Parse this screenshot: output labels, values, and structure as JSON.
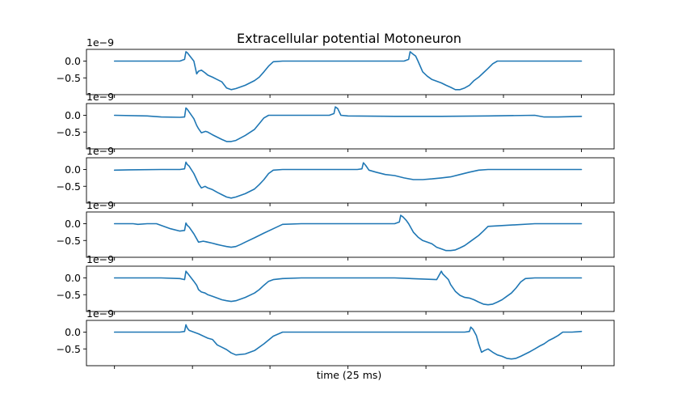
{
  "chart_data": {
    "type": "line",
    "title": "Extracellular potential Motoneuron",
    "xlabel": "time (25 ms)",
    "ylabel": "",
    "offset_text": "1e−9",
    "line_color": "#1f77b4",
    "ylim": [
      -1.0,
      0.35
    ],
    "yticks": [
      {
        "value": 0.0,
        "label": "0.0"
      },
      {
        "value": -0.5,
        "label": "−0.5"
      }
    ],
    "xlim": [
      -6,
      107
    ],
    "xticks": [
      0,
      16.7,
      33.3,
      50,
      66.7,
      83.3,
      100
    ],
    "grid": false,
    "subplots": [
      {
        "x": [
          0,
          14,
          15,
          15.3,
          15.6,
          16,
          17,
          17.6,
          18,
          18.6,
          19.4,
          20,
          21,
          22,
          23,
          24,
          25,
          26,
          28,
          30,
          31,
          32,
          33,
          34,
          36,
          40,
          45,
          50,
          55,
          58,
          60,
          62,
          63,
          63.3,
          63.8,
          64.5,
          65,
          66,
          67,
          68,
          69,
          70,
          71,
          72,
          73,
          74,
          75,
          76,
          77,
          78,
          79,
          80,
          81,
          82,
          90,
          100
        ],
        "y": [
          0,
          0,
          0.05,
          0.28,
          0.25,
          0.18,
          0,
          -0.38,
          -0.3,
          -0.27,
          -0.35,
          -0.42,
          -0.48,
          -0.55,
          -0.62,
          -0.8,
          -0.85,
          -0.82,
          -0.72,
          -0.58,
          -0.48,
          -0.32,
          -0.15,
          -0.02,
          0,
          0,
          0,
          0,
          0,
          0,
          0,
          0,
          0.05,
          0.28,
          0.22,
          0.15,
          0,
          -0.32,
          -0.45,
          -0.55,
          -0.6,
          -0.65,
          -0.72,
          -0.78,
          -0.85,
          -0.85,
          -0.8,
          -0.72,
          -0.58,
          -0.48,
          -0.35,
          -0.22,
          -0.08,
          0,
          0,
          0
        ]
      },
      {
        "x": [
          0,
          7,
          10,
          14,
          15,
          15.3,
          15.6,
          16,
          17,
          17.6,
          18,
          18.6,
          19.5,
          20,
          21,
          22,
          23,
          24,
          25,
          26,
          28,
          30,
          31,
          32,
          33,
          36,
          44,
          46,
          47,
          47.3,
          47.8,
          48.5,
          50,
          60,
          70,
          80,
          90,
          92,
          95,
          100
        ],
        "y": [
          0,
          -0.02,
          -0.05,
          -0.06,
          -0.05,
          0.22,
          0.18,
          0.1,
          -0.1,
          -0.3,
          -0.4,
          -0.52,
          -0.48,
          -0.5,
          -0.58,
          -0.65,
          -0.72,
          -0.78,
          -0.78,
          -0.75,
          -0.6,
          -0.42,
          -0.25,
          -0.08,
          0,
          0,
          0,
          0,
          0.05,
          0.25,
          0.2,
          0,
          -0.02,
          -0.03,
          -0.03,
          -0.02,
          0,
          -0.05,
          -0.05,
          -0.03
        ]
      },
      {
        "x": [
          0,
          3,
          10,
          14,
          15,
          15.3,
          15.6,
          16,
          17,
          17.6,
          18,
          18.6,
          19.4,
          20,
          21,
          22,
          23,
          24,
          25,
          26,
          28,
          30,
          31,
          32,
          33,
          34,
          36,
          44,
          52,
          53,
          53.3,
          53.8,
          54.5,
          56,
          58,
          60,
          62,
          64,
          66,
          68,
          70,
          72,
          74,
          76,
          78,
          80,
          82,
          90,
          100
        ],
        "y": [
          -0.02,
          -0.01,
          0,
          0,
          0.02,
          0.22,
          0.15,
          0.1,
          -0.12,
          -0.3,
          -0.42,
          -0.55,
          -0.5,
          -0.55,
          -0.6,
          -0.68,
          -0.75,
          -0.82,
          -0.85,
          -0.82,
          -0.72,
          -0.58,
          -0.45,
          -0.3,
          -0.12,
          -0.02,
          0,
          0,
          0,
          0.02,
          0.2,
          0.12,
          -0.02,
          -0.08,
          -0.15,
          -0.18,
          -0.25,
          -0.3,
          -0.3,
          -0.28,
          -0.25,
          -0.22,
          -0.15,
          -0.08,
          -0.02,
          0,
          0,
          0,
          0
        ]
      },
      {
        "x": [
          0,
          4,
          5,
          7,
          9,
          10,
          12,
          14,
          15,
          15.3,
          15.6,
          16,
          17,
          17.6,
          18,
          19,
          20,
          21,
          22,
          23,
          24,
          25,
          26,
          27,
          28,
          30,
          32,
          34,
          36,
          40,
          50,
          60,
          61,
          61.3,
          61.8,
          62.5,
          63,
          64,
          65,
          66,
          67,
          68,
          69,
          70,
          71,
          72,
          73,
          74,
          75,
          76,
          77,
          78,
          79,
          80,
          90,
          100
        ],
        "y": [
          0,
          0,
          -0.02,
          0,
          0,
          -0.05,
          -0.15,
          -0.22,
          -0.2,
          0.02,
          -0.05,
          -0.1,
          -0.3,
          -0.45,
          -0.55,
          -0.52,
          -0.55,
          -0.58,
          -0.62,
          -0.65,
          -0.68,
          -0.7,
          -0.68,
          -0.62,
          -0.55,
          -0.42,
          -0.28,
          -0.15,
          -0.02,
          0,
          0,
          0,
          0.05,
          0.25,
          0.2,
          0.1,
          0,
          -0.25,
          -0.4,
          -0.5,
          -0.55,
          -0.6,
          -0.7,
          -0.75,
          -0.8,
          -0.8,
          -0.78,
          -0.72,
          -0.65,
          -0.55,
          -0.45,
          -0.35,
          -0.22,
          -0.08,
          0,
          0
        ]
      },
      {
        "x": [
          0,
          10,
          14,
          15,
          15.3,
          15.6,
          16,
          17,
          17.6,
          18,
          18.6,
          19.4,
          20,
          21,
          22,
          23,
          24,
          25,
          26,
          28,
          30,
          31,
          32,
          33,
          34,
          36,
          40,
          50,
          60,
          69,
          70,
          70.3,
          70.8,
          71.5,
          72,
          73,
          74,
          75,
          76,
          77,
          78,
          79,
          80,
          81,
          82,
          83,
          84,
          85,
          86,
          87,
          88,
          90,
          100
        ],
        "y": [
          0,
          0,
          -0.02,
          -0.05,
          0.2,
          0.15,
          0.08,
          -0.1,
          -0.22,
          -0.35,
          -0.42,
          -0.45,
          -0.5,
          -0.55,
          -0.6,
          -0.65,
          -0.68,
          -0.7,
          -0.68,
          -0.58,
          -0.45,
          -0.35,
          -0.22,
          -0.1,
          -0.05,
          -0.02,
          0,
          0,
          0,
          -0.05,
          0.2,
          0.12,
          0.05,
          -0.05,
          -0.2,
          -0.4,
          -0.52,
          -0.58,
          -0.6,
          -0.65,
          -0.72,
          -0.78,
          -0.8,
          -0.78,
          -0.72,
          -0.65,
          -0.55,
          -0.45,
          -0.3,
          -0.12,
          -0.02,
          0,
          0
        ]
      },
      {
        "x": [
          0,
          10,
          14,
          15,
          15.3,
          15.6,
          16,
          18,
          20,
          21,
          22,
          23,
          24,
          25,
          26,
          28,
          30,
          32,
          34,
          36,
          40,
          50,
          60,
          75,
          76,
          76.3,
          76.8,
          77.5,
          78,
          78.6,
          79.2,
          80,
          81,
          82,
          83,
          84,
          85,
          86,
          87,
          88,
          89,
          90,
          91,
          92,
          93,
          94,
          95,
          96,
          97,
          98,
          100
        ],
        "y": [
          0,
          0,
          0,
          0.02,
          0.22,
          0.12,
          0.05,
          -0.05,
          -0.18,
          -0.22,
          -0.38,
          -0.45,
          -0.52,
          -0.62,
          -0.68,
          -0.65,
          -0.55,
          -0.35,
          -0.12,
          0,
          0,
          0,
          0,
          0,
          0.02,
          0.15,
          0.08,
          -0.1,
          -0.35,
          -0.6,
          -0.55,
          -0.5,
          -0.6,
          -0.68,
          -0.72,
          -0.78,
          -0.8,
          -0.78,
          -0.72,
          -0.65,
          -0.58,
          -0.5,
          -0.42,
          -0.35,
          -0.25,
          -0.18,
          -0.1,
          0,
          0,
          0,
          0.02
        ]
      }
    ]
  }
}
